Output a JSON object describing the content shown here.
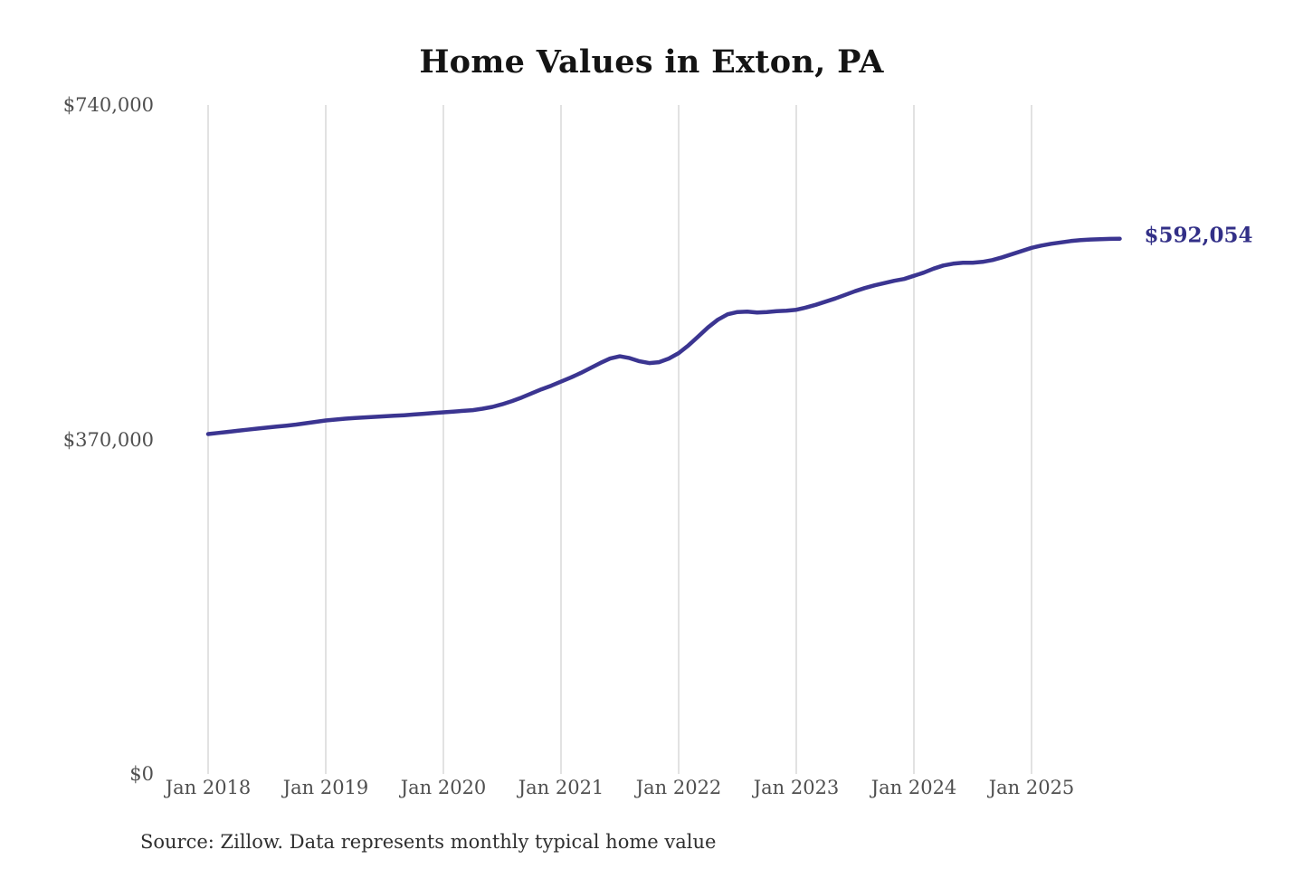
{
  "source_note": "Source: Zillow. Data represents monthly typical home value",
  "colors": {
    "line": "#3b3591",
    "end_label": "#322f87",
    "grid": "#cfcfcf",
    "tick_text": "#4f4f4f",
    "title_text": "#141414",
    "source_text": "#2f2f2f"
  },
  "chart_data": {
    "type": "line",
    "title": "Home Values in Exton, PA",
    "latest_value_label": "$592,054",
    "frequency": "monthly",
    "x_start": "2018-01",
    "x_end": "2025-10",
    "ylim": [
      0,
      740000
    ],
    "grid": "vertical-only",
    "legend": "none",
    "x_tick_labels": [
      "Jan 2018",
      "Jan 2019",
      "Jan 2020",
      "Jan 2021",
      "Jan 2022",
      "Jan 2023",
      "Jan 2024",
      "Jan 2025"
    ],
    "y_ticks": [
      {
        "label": "$740,000",
        "value": 740000
      },
      {
        "label": "$370,000",
        "value": 370000
      },
      {
        "label": "$0",
        "value": 0
      }
    ],
    "series": [
      {
        "name": "Typical home value",
        "values": [
          376000,
          377200,
          378400,
          379600,
          380800,
          382000,
          383100,
          384200,
          385300,
          386500,
          388000,
          389500,
          391000,
          392000,
          393000,
          393800,
          394400,
          395000,
          395600,
          396200,
          396800,
          397600,
          398400,
          399200,
          400000,
          400800,
          401600,
          402400,
          404000,
          406000,
          409000,
          412500,
          416500,
          421000,
          425500,
          429500,
          434000,
          438500,
          443500,
          449000,
          454500,
          459500,
          462000,
          460000,
          456500,
          454500,
          455500,
          459500,
          465500,
          474000,
          484000,
          494000,
          502500,
          508500,
          511000,
          511500,
          510500,
          511000,
          512000,
          512500,
          513500,
          516000,
          519000,
          522500,
          526000,
          530000,
          534000,
          537500,
          540500,
          543000,
          545500,
          547500,
          551000,
          554500,
          559000,
          562500,
          564500,
          565500,
          565500,
          566500,
          568500,
          571500,
          575000,
          578500,
          582000,
          584500,
          586500,
          588000,
          589500,
          590500,
          591200,
          591600,
          591900,
          592054
        ]
      }
    ]
  }
}
